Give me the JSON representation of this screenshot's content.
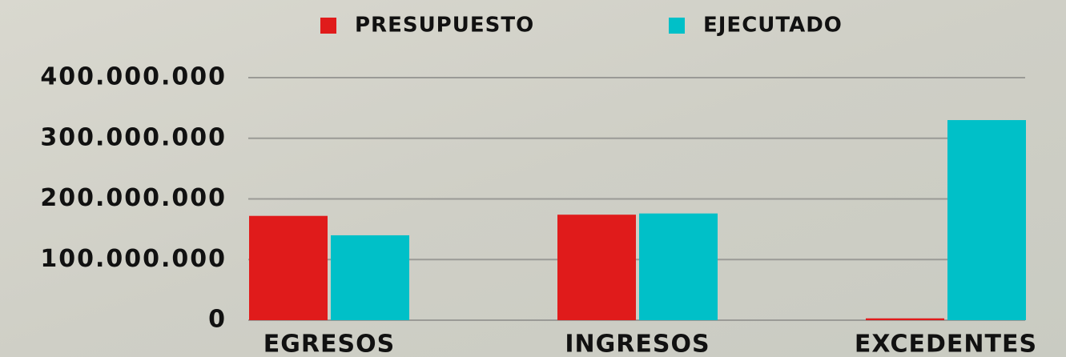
{
  "chart_data": {
    "type": "bar",
    "categories": [
      "EGRESOS",
      "INGRESOS",
      "EXCEDENTES"
    ],
    "series": [
      {
        "name": "PRESUPUESTO",
        "color": "#e01b1b",
        "values": [
          172000000,
          174000000,
          3000000
        ]
      },
      {
        "name": "EJECUTADO",
        "color": "#00c0c8",
        "values": [
          140000000,
          176000000,
          330000000
        ]
      }
    ],
    "ylim": [
      0,
      400000000
    ],
    "yticks": [
      0,
      {
        "value": 100000000,
        "label": "100.000.000"
      },
      {
        "value": 200000000,
        "label": "200.000.000"
      },
      {
        "value": 300000000,
        "label": "300.000.000"
      },
      {
        "value": 400000000,
        "label": "400.000.000"
      }
    ],
    "grid": true,
    "legend": "top"
  }
}
